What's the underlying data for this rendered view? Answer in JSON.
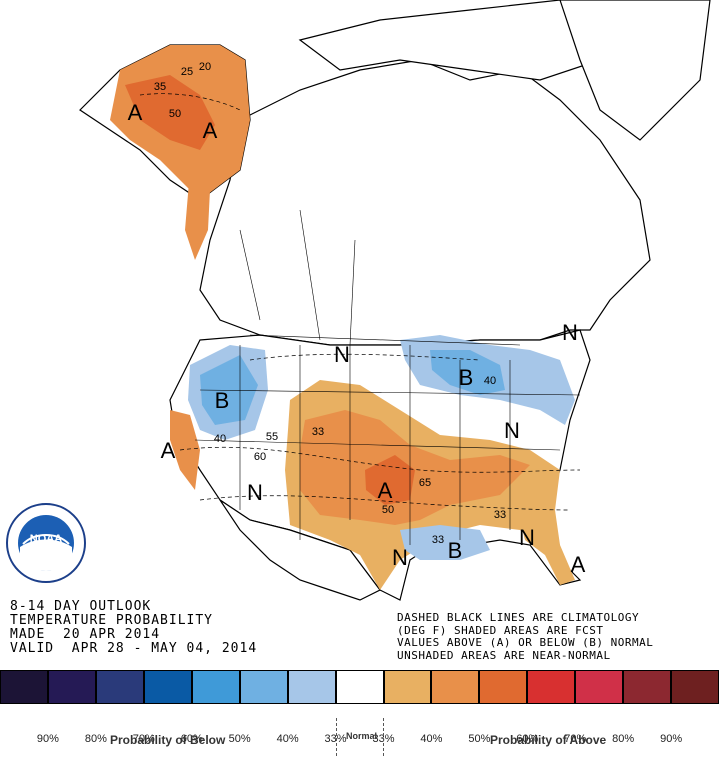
{
  "map": {
    "labels": {
      "above": "A",
      "below": "B",
      "normal": "N"
    },
    "contours": [
      "20",
      "25",
      "35",
      "50",
      "33",
      "40",
      "55",
      "60",
      "65",
      "50",
      "33",
      "40",
      "33"
    ],
    "categories": {
      "alaska": "Above",
      "northern_rockies": "Below",
      "great_lakes": "Below",
      "southern_plains": "Above",
      "texas_coast": "Below",
      "florida": "Above",
      "california": "Above"
    }
  },
  "logo": {
    "text": "NOAA"
  },
  "caption": {
    "line1": "8-14 DAY OUTLOOK",
    "line2": "TEMPERATURE PROBABILITY",
    "line3": "MADE  20 APR 2014",
    "line4": "VALID  APR 28 - MAY 04, 2014"
  },
  "note": {
    "line1": "DASHED BLACK LINES ARE CLIMATOLOGY",
    "line2": "(DEG F) SHADED AREAS ARE FCST",
    "line3": "VALUES ABOVE (A) OR BELOW (B) NORMAL",
    "line4": "UNSHADED AREAS ARE NEAR-NORMAL"
  },
  "legend": {
    "colors": [
      "#1c1436",
      "#251a55",
      "#2a3a7a",
      "#0a5aa5",
      "#3f9ad8",
      "#6fb0e2",
      "#a6c6e8",
      "#ffffff",
      "#e8b062",
      "#e8904a",
      "#e06a30",
      "#d83030",
      "#d03048",
      "#8c2830",
      "#6e2020"
    ],
    "ticks": [
      "90%",
      "80%",
      "70%",
      "60%",
      "50%",
      "40%",
      "33%",
      "33%",
      "40%",
      "50%",
      "60%",
      "70%",
      "80%",
      "90%"
    ],
    "title_below": "Probability of Below",
    "title_normal": "Normal",
    "title_above": "Probability of Above"
  }
}
